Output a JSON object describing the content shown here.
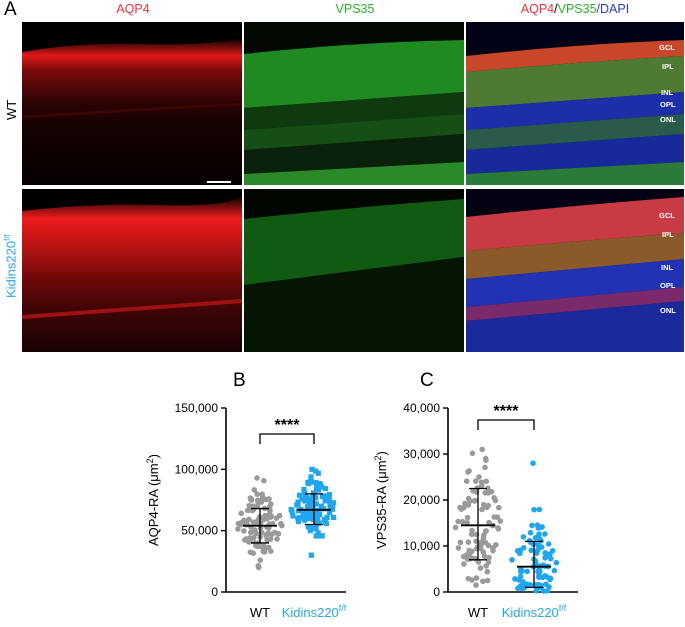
{
  "figure": {
    "panel_a_letter": "A",
    "panel_b_letter": "B",
    "panel_c_letter": "C",
    "columns": [
      {
        "label": "AQP4",
        "color": "#f2323a"
      },
      {
        "label": "VPS35",
        "color": "#27b427"
      },
      {
        "label_parts": [
          "AQP4",
          "/",
          "VPS35",
          "/DAPI"
        ],
        "part_colors": [
          "#f2323a",
          "#000000",
          "#27b427",
          "#2a3cc8"
        ]
      }
    ],
    "rows": [
      {
        "label": "WT",
        "color": "#000000"
      },
      {
        "label": "Kidins220",
        "sup": "f/f",
        "color": "#27a8e6"
      }
    ],
    "layers_wt": [
      "GCL",
      "IPL",
      "INL",
      "OPL",
      "ONL"
    ],
    "layers_ko": [
      "GCL",
      "IPL",
      "INL",
      "OPL",
      "ONL"
    ]
  },
  "chart_data": [
    {
      "type": "scatter",
      "panel": "B",
      "ylabel": "AQP4-RA (μm",
      "ylabel_sup": "2",
      "ylabel_tail": ")",
      "ylim": [
        0,
        150000
      ],
      "yticks": [
        0,
        50000,
        100000,
        150000
      ],
      "ytick_labels": [
        "0",
        "50,000",
        "100,000",
        "150,000"
      ],
      "categories": [
        "WT",
        "Kidins220"
      ],
      "category_sup": [
        "",
        "f/f"
      ],
      "category_colors": [
        "#000000",
        "#27a8e6"
      ],
      "significance": "****",
      "series": [
        {
          "name": "WT",
          "color": "#9a9a9a",
          "marker": "circle",
          "mean": 54000,
          "sd_low": 40000,
          "sd_high": 68000,
          "min": 20000,
          "max": 93000,
          "n": 110
        },
        {
          "name": "Kidins220",
          "color": "#1ea6f0",
          "marker": "square",
          "mean": 67000,
          "sd_low": 55000,
          "sd_high": 80000,
          "min": 30000,
          "max": 100000,
          "n": 110
        }
      ]
    },
    {
      "type": "scatter",
      "panel": "C",
      "ylabel": "VPS35-RA (μm",
      "ylabel_sup": "2",
      "ylabel_tail": ")",
      "ylim": [
        0,
        40000
      ],
      "yticks": [
        0,
        10000,
        20000,
        30000,
        40000
      ],
      "ytick_labels": [
        "0",
        "10,000",
        "20,000",
        "30,000",
        "40,000"
      ],
      "categories": [
        "WT",
        "Kidins220"
      ],
      "category_sup": [
        "",
        "f/f"
      ],
      "category_colors": [
        "#000000",
        "#27a8e6"
      ],
      "significance": "****",
      "series": [
        {
          "name": "WT",
          "color": "#9a9a9a",
          "marker": "circle",
          "mean": 14500,
          "sd_low": 7000,
          "sd_high": 22500,
          "min": 1500,
          "max": 31000,
          "n": 95
        },
        {
          "name": "Kidins220",
          "color": "#1ea6f0",
          "marker": "circle",
          "mean": 5500,
          "sd_low": 1000,
          "sd_high": 11000,
          "min": 200,
          "max": 28000,
          "n": 90
        }
      ]
    }
  ]
}
